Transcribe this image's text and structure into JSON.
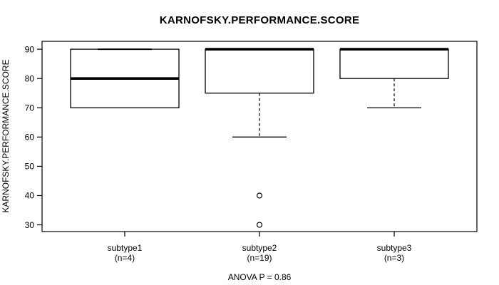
{
  "chart_data": {
    "type": "boxplot",
    "title": "KARNOFSKY.PERFORMANCE.SCORE",
    "ylabel": "KARNOFSKY.PERFORMANCE.SCORE",
    "footer": "ANOVA P = 0.86",
    "background_color": "#ffffff",
    "line_color": "#000000",
    "grid": false,
    "y_axis": {
      "min": 27.7,
      "max": 92.7,
      "ticks": [
        30,
        40,
        50,
        60,
        70,
        80,
        90
      ]
    },
    "groups": [
      {
        "label": "subtype1",
        "sublabel": "(n=4)",
        "whisker_low": 70,
        "q1": 70,
        "median": 80,
        "q3": 90,
        "whisker_high": 90,
        "outliers": []
      },
      {
        "label": "subtype2",
        "sublabel": "(n=19)",
        "whisker_low": 60,
        "q1": 75,
        "median": 90,
        "q3": 90,
        "whisker_high": 90,
        "outliers": [
          40,
          30
        ]
      },
      {
        "label": "subtype3",
        "sublabel": "(n=3)",
        "whisker_low": 70,
        "q1": 80,
        "median": 90,
        "q3": 90,
        "whisker_high": 90,
        "outliers": []
      }
    ]
  }
}
